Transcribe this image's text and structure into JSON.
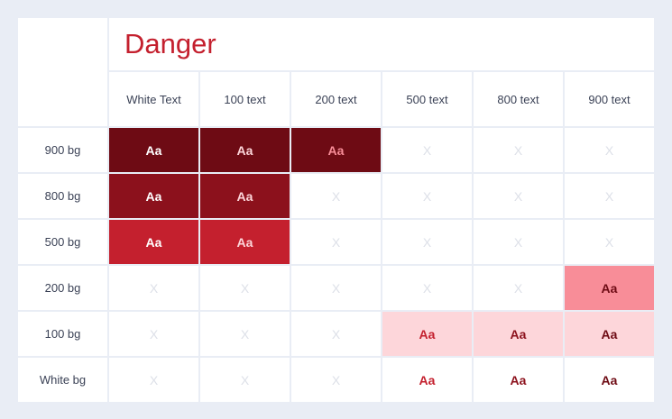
{
  "title": "Danger",
  "columns": [
    "White Text",
    "100 text",
    "200 text",
    "500 text",
    "800 text",
    "900 text"
  ],
  "rows": [
    {
      "label": "900 bg",
      "bg": "#6e0b14",
      "cells": [
        "Aa",
        "Aa",
        "Aa",
        "X",
        "X",
        "X"
      ]
    },
    {
      "label": "800 bg",
      "bg": "#8c111c",
      "cells": [
        "Aa",
        "Aa",
        "X",
        "X",
        "X",
        "X"
      ]
    },
    {
      "label": "500 bg",
      "bg": "#c4202e",
      "cells": [
        "Aa",
        "Aa",
        "X",
        "X",
        "X",
        "X"
      ]
    },
    {
      "label": "200 bg",
      "bg": "#f88d98",
      "cells": [
        "X",
        "X",
        "X",
        "X",
        "X",
        "Aa"
      ]
    },
    {
      "label": "100 bg",
      "bg": "#fdd6da",
      "cells": [
        "X",
        "X",
        "X",
        "Aa",
        "Aa",
        "Aa"
      ]
    },
    {
      "label": "White bg",
      "bg": "#ffffff",
      "cells": [
        "X",
        "X",
        "X",
        "Aa",
        "Aa",
        "Aa"
      ]
    }
  ],
  "colors": {
    "white": "#ffffff",
    "danger_100": "#fdd6da",
    "danger_200": "#f88d98",
    "danger_500": "#c4202e",
    "danger_800": "#8c111c",
    "danger_900": "#6e0b14",
    "text_colors": [
      "#ffffff",
      "#fdd6da",
      "#f88d98",
      "#c4202e",
      "#8c111c",
      "#6e0b14"
    ],
    "unavailable_mark": "#dde0e8"
  }
}
